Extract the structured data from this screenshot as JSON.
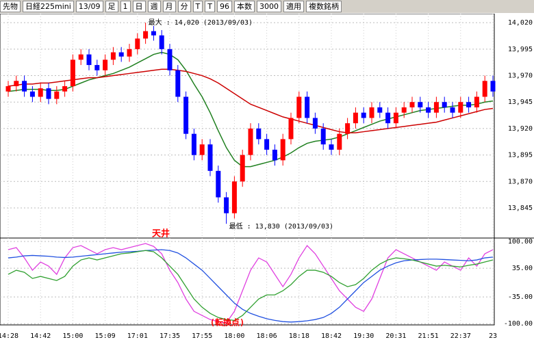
{
  "toolbar": {
    "items": [
      "先物",
      "日経225mini",
      "13/09",
      "足",
      "1",
      "日",
      "週",
      "月",
      "分",
      "T",
      "T",
      "96",
      "本数",
      "3000",
      "適用",
      "複数銘柄"
    ]
  },
  "chart_data": [
    {
      "type": "candlestick",
      "categories": [
        "14:28",
        null,
        null,
        null,
        "14:42",
        null,
        null,
        null,
        "15:00",
        null,
        null,
        null,
        "15:09",
        null,
        null,
        null,
        "17:01",
        null,
        null,
        null,
        "17:35",
        null,
        null,
        null,
        "17:55",
        null,
        null,
        null,
        "18:00",
        null,
        null,
        null,
        "18:06",
        null,
        null,
        null,
        "18:18",
        null,
        null,
        null,
        "18:42",
        null,
        null,
        null,
        "19:30",
        null,
        null,
        null,
        "20:31",
        null,
        null,
        null,
        "21:51",
        null,
        null,
        null,
        "22:37",
        null,
        null,
        null,
        "23"
      ],
      "open": [
        13955,
        13960,
        13965,
        13955,
        13950,
        13958,
        13948,
        13955,
        13960,
        13985,
        13990,
        13980,
        13975,
        13985,
        13992,
        13988,
        13995,
        14005,
        14012,
        14008,
        13995,
        13975,
        13950,
        13915,
        13895,
        13905,
        13880,
        13855,
        13840,
        13870,
        13895,
        13920,
        13910,
        13900,
        13890,
        13910,
        13930,
        13950,
        13930,
        13920,
        13905,
        13900,
        13915,
        13925,
        13935,
        13930,
        13940,
        13935,
        13925,
        13935,
        13940,
        13945,
        13940,
        13935,
        13945,
        13940,
        13935,
        13945,
        13940,
        13950,
        13965
      ],
      "high": [
        13965,
        13970,
        13970,
        13960,
        13963,
        13963,
        13960,
        13965,
        13990,
        13995,
        13995,
        13985,
        13990,
        13997,
        13997,
        14000,
        14010,
        14020,
        14017,
        14013,
        14000,
        13980,
        13955,
        13920,
        13910,
        13910,
        13885,
        13860,
        13875,
        13900,
        13925,
        13925,
        13915,
        13905,
        13915,
        13935,
        13955,
        13955,
        13935,
        13925,
        13910,
        13920,
        13930,
        13940,
        13940,
        13945,
        13945,
        13940,
        13940,
        13945,
        13950,
        13950,
        13945,
        13950,
        13950,
        13945,
        13950,
        13950,
        13955,
        13970,
        13970
      ],
      "low": [
        13950,
        13955,
        13950,
        13945,
        13945,
        13943,
        13943,
        13950,
        13955,
        13980,
        13975,
        13970,
        13970,
        13980,
        13983,
        13983,
        13990,
        14000,
        14003,
        13990,
        13970,
        13945,
        13910,
        13890,
        13890,
        13875,
        13850,
        13830,
        13835,
        13865,
        13890,
        13905,
        13895,
        13885,
        13885,
        13905,
        13925,
        13925,
        13915,
        13900,
        13895,
        13895,
        13910,
        13920,
        13925,
        13925,
        13930,
        13920,
        13920,
        13930,
        13935,
        13935,
        13930,
        13930,
        13935,
        13930,
        13930,
        13935,
        13935,
        13945,
        13950
      ],
      "close": [
        13960,
        13965,
        13955,
        13950,
        13958,
        13948,
        13955,
        13960,
        13985,
        13990,
        13980,
        13975,
        13985,
        13992,
        13988,
        13995,
        14005,
        14012,
        14008,
        13995,
        13975,
        13950,
        13915,
        13895,
        13905,
        13880,
        13855,
        13840,
        13870,
        13895,
        13920,
        13910,
        13900,
        13890,
        13910,
        13930,
        13950,
        13930,
        13920,
        13905,
        13900,
        13915,
        13925,
        13935,
        13930,
        13940,
        13935,
        13925,
        13935,
        13940,
        13945,
        13940,
        13935,
        13945,
        13940,
        13935,
        13945,
        13940,
        13950,
        13965,
        13955
      ],
      "up_color": "#ff0000",
      "down_color": "#0000ff",
      "series": [
        {
          "color": "#208020",
          "values": [
            13955,
            13956,
            13957,
            13957,
            13957,
            13956,
            13956,
            13957,
            13960,
            13963,
            13966,
            13968,
            13970,
            13972,
            13975,
            13978,
            13982,
            13986,
            13990,
            13992,
            13990,
            13985,
            13975,
            13962,
            13950,
            13935,
            13918,
            13902,
            13890,
            13884,
            13884,
            13886,
            13888,
            13890,
            13893,
            13897,
            13902,
            13906,
            13908,
            13909,
            13910,
            13912,
            13915,
            13918,
            13921,
            13924,
            13927,
            13929,
            13931,
            13933,
            13935,
            13937,
            13938,
            13939,
            13940,
            13941,
            13942,
            13942,
            13943,
            13945,
            13946
          ]
        },
        {
          "color": "#cc0000",
          "values": [
            13960,
            13961,
            13962,
            13962,
            13963,
            13963,
            13964,
            13965,
            13966,
            13967,
            13968,
            13968,
            13969,
            13970,
            13971,
            13972,
            13973,
            13974,
            13975,
            13976,
            13976,
            13975,
            13974,
            13972,
            13970,
            13967,
            13963,
            13958,
            13953,
            13948,
            13943,
            13940,
            13937,
            13934,
            13931,
            13929,
            13927,
            13925,
            13923,
            13921,
            13919,
            13917,
            13916,
            13916,
            13917,
            13918,
            13919,
            13920,
            13921,
            13922,
            13923,
            13924,
            13925,
            13926,
            13928,
            13930,
            13932,
            13934,
            13936,
            13938,
            13939
          ]
        }
      ],
      "ylim": [
        13818.5,
        14028.5
      ],
      "yticks": [
        {
          "value": 14020,
          "label": "14,020"
        },
        {
          "value": 13995,
          "label": "13,995"
        },
        {
          "value": 13970,
          "label": "13,970"
        },
        {
          "value": 13945,
          "label": "13,945"
        },
        {
          "value": 13920,
          "label": "13,920"
        },
        {
          "value": 13895,
          "label": "13,895"
        },
        {
          "value": 13870,
          "label": "13,870"
        },
        {
          "value": 13845,
          "label": "13,845"
        }
      ],
      "annotations": [
        "最大 : 14,020 (2013/09/03)",
        "最低 : 13,830 (2013/09/03)"
      ]
    },
    {
      "type": "line",
      "series": [
        {
          "color": "#e040e0",
          "values": [
            80,
            85,
            60,
            30,
            50,
            40,
            20,
            60,
            85,
            90,
            80,
            70,
            80,
            85,
            80,
            85,
            90,
            95,
            88,
            70,
            30,
            0,
            -40,
            -70,
            -80,
            -90,
            -95,
            -98,
            -70,
            -20,
            30,
            60,
            50,
            20,
            -10,
            20,
            60,
            90,
            70,
            40,
            10,
            -20,
            -40,
            -60,
            -70,
            -40,
            10,
            60,
            80,
            70,
            60,
            50,
            40,
            30,
            50,
            40,
            30,
            60,
            40,
            70,
            80
          ]
        },
        {
          "color": "#2050e0",
          "values": [
            60,
            62,
            65,
            66,
            65,
            64,
            62,
            61,
            62,
            64,
            66,
            68,
            70,
            72,
            74,
            75,
            76,
            78,
            79,
            80,
            78,
            72,
            60,
            45,
            30,
            10,
            -10,
            -30,
            -50,
            -65,
            -75,
            -82,
            -88,
            -92,
            -95,
            -96,
            -95,
            -93,
            -90,
            -85,
            -75,
            -60,
            -40,
            -20,
            0,
            15,
            30,
            40,
            48,
            53,
            55,
            56,
            57,
            57,
            56,
            55,
            54,
            53,
            55,
            60,
            62
          ]
        },
        {
          "color": "#30a030",
          "values": [
            20,
            30,
            25,
            10,
            15,
            10,
            5,
            15,
            40,
            55,
            60,
            55,
            60,
            65,
            70,
            72,
            75,
            78,
            75,
            60,
            40,
            20,
            -10,
            -40,
            -60,
            -75,
            -85,
            -90,
            -92,
            -80,
            -60,
            -40,
            -30,
            -30,
            -20,
            -5,
            15,
            30,
            30,
            25,
            15,
            0,
            -10,
            -5,
            10,
            30,
            45,
            55,
            60,
            58,
            55,
            50,
            45,
            40,
            42,
            40,
            38,
            42,
            45,
            50,
            55
          ]
        }
      ],
      "ylim": [
        -103,
        105
      ],
      "yticks": [
        {
          "value": 100,
          "label": "100.00"
        },
        {
          "value": 35,
          "label": "35.00"
        },
        {
          "value": -35,
          "label": "-35.00"
        },
        {
          "value": -100,
          "label": "-100.00"
        }
      ],
      "annotations": [
        "天井",
        "(転換点)"
      ],
      "annotation_color": "#ff0000"
    }
  ]
}
